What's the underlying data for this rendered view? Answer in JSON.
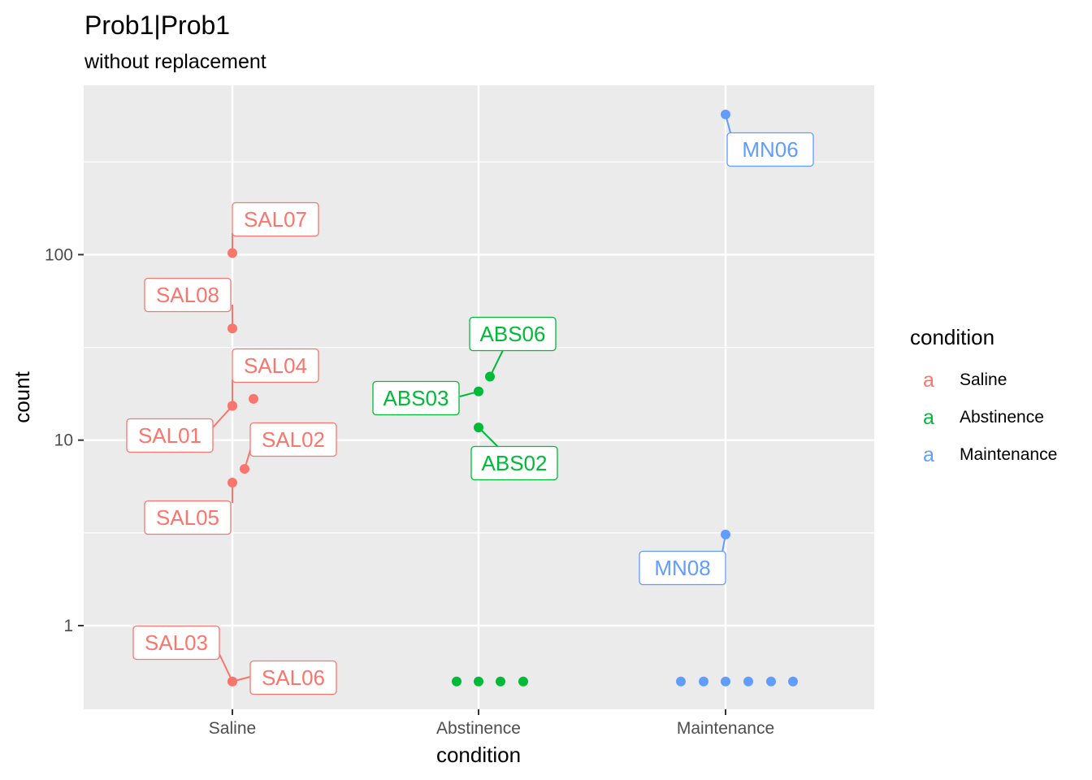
{
  "chart_data": {
    "type": "scatter",
    "title": "Prob1|Prob1",
    "subtitle": "without replacement",
    "xlabel": "condition",
    "ylabel": "count",
    "y_scale": "log10",
    "ylim": [
      0.38,
      900
    ],
    "y_ticks": [
      1,
      10,
      100
    ],
    "y_tick_labels": [
      "1",
      "10",
      "100"
    ],
    "categories": [
      "Saline",
      "Abstinence",
      "Maintenance"
    ],
    "grid": true,
    "legend": {
      "title": "condition",
      "position": "right",
      "key_glyph": "a",
      "entries": [
        "Saline",
        "Abstinence",
        "Maintenance"
      ]
    },
    "colors": {
      "Saline": "#F8766D",
      "Abstinence": "#00BA38",
      "Maintenance": "#619CFF",
      "panel": "#EBEBEB",
      "grid": "#FFFFFF"
    },
    "series": [
      {
        "name": "Saline",
        "points": [
          {
            "label": "SAL07",
            "y": 102
          },
          {
            "label": "SAL08",
            "y": 40
          },
          {
            "label": "SAL04",
            "y": 15.3
          },
          {
            "label": "",
            "y": 16.7
          },
          {
            "label": "SAL01",
            "y": 15.3
          },
          {
            "label": "SAL02",
            "y": 7
          },
          {
            "label": "SAL05",
            "y": 5.9
          },
          {
            "label": "SAL03",
            "y": 0.5
          },
          {
            "label": "SAL06",
            "y": 0.5
          }
        ]
      },
      {
        "name": "Abstinence",
        "points": [
          {
            "label": "ABS06",
            "y": 22
          },
          {
            "label": "ABS03",
            "y": 18.3
          },
          {
            "label": "ABS02",
            "y": 11.7
          },
          {
            "label": "",
            "y": 0.5
          },
          {
            "label": "",
            "y": 0.5
          },
          {
            "label": "",
            "y": 0.5
          },
          {
            "label": "",
            "y": 0.5
          }
        ]
      },
      {
        "name": "Maintenance",
        "points": [
          {
            "label": "MN06",
            "y": 570
          },
          {
            "label": "MN08",
            "y": 3.1
          },
          {
            "label": "",
            "y": 0.5
          },
          {
            "label": "",
            "y": 0.5
          },
          {
            "label": "",
            "y": 0.5
          },
          {
            "label": "",
            "y": 0.5
          },
          {
            "label": "",
            "y": 0.5
          },
          {
            "label": "",
            "y": 0.5
          }
        ]
      }
    ]
  }
}
